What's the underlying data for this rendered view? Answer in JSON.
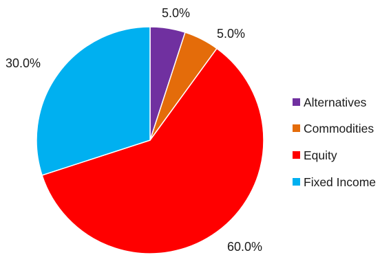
{
  "chart_data": {
    "type": "pie",
    "title": "",
    "categories": [
      "Alternatives",
      "Commodities",
      "Equity",
      "Fixed Income"
    ],
    "values": [
      5.0,
      5.0,
      60.0,
      30.0
    ],
    "value_labels": [
      "5.0%",
      "5.0%",
      "60.0%",
      "30.0%"
    ],
    "colors": [
      "#7030a0",
      "#e46c0a",
      "#ff0000",
      "#00b0f0"
    ],
    "start": "12 o'clock",
    "direction": "clockwise",
    "legend": {
      "position": "right",
      "entries": [
        "Alternatives",
        "Commodities",
        "Equity",
        "Fixed Income"
      ]
    }
  }
}
